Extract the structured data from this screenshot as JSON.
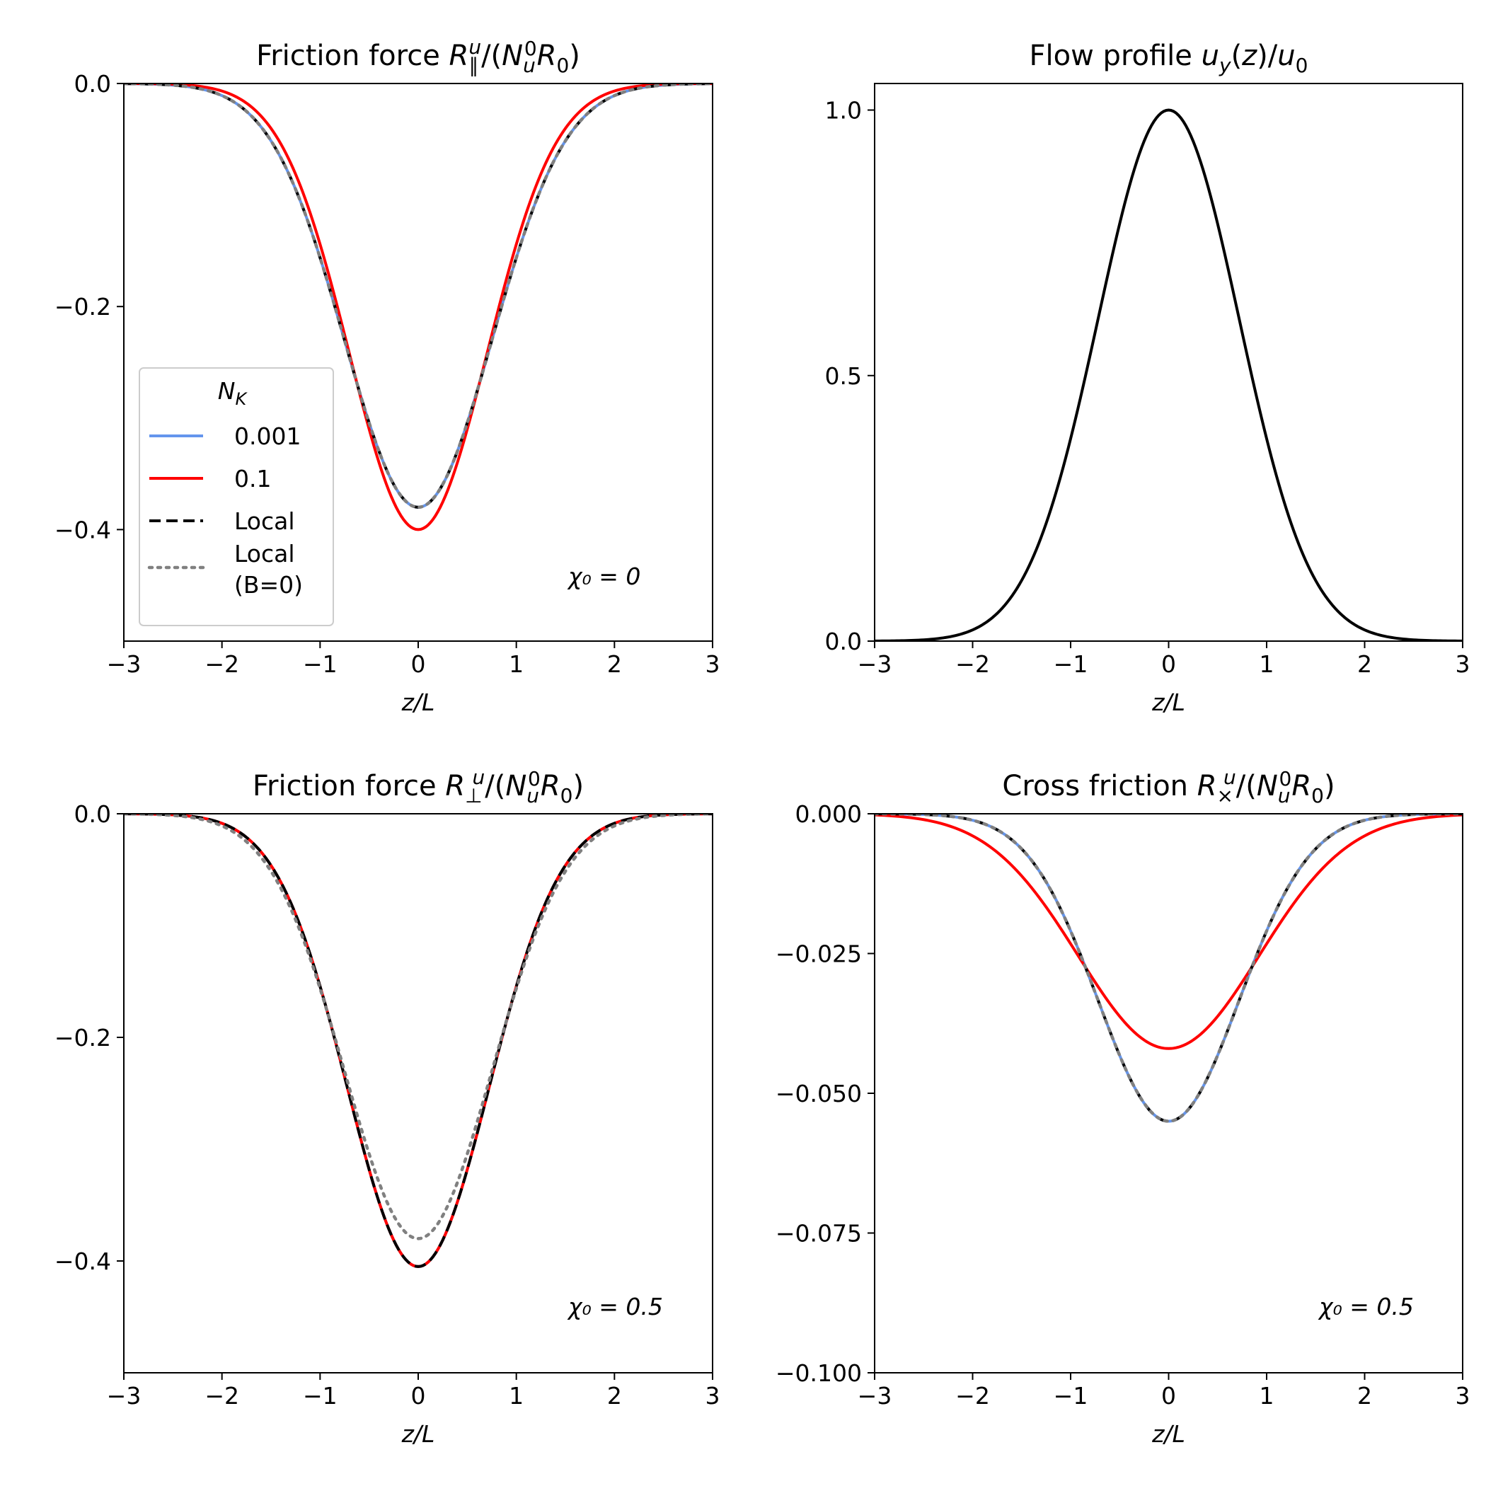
{
  "chart_data": [
    {
      "id": "p1",
      "type": "line",
      "title": "Friction force R∥ᵘ/(N⁰ᵤR₀)",
      "title_parts": [
        "Friction force ",
        "R",
        "∥",
        "u",
        "/(",
        "N",
        "u",
        "0",
        "R",
        "0",
        ")"
      ],
      "xlabel": "z/L",
      "xlim": [
        -3,
        3
      ],
      "ylim": [
        -0.5,
        0
      ],
      "xticks": [
        -3,
        -2,
        -1,
        0,
        1,
        2,
        3
      ],
      "xtick_labels": [
        "−3",
        "−2",
        "−1",
        "0",
        "1",
        "2",
        "3"
      ],
      "yticks": [
        0,
        -0.2,
        -0.4
      ],
      "ytick_labels": [
        "0.0",
        "−0.2",
        "−0.4"
      ],
      "annotation": "χ₀ = 0",
      "series": [
        {
          "name": "0.001",
          "color": "#6495ED",
          "style": "solid",
          "curve": "gaussian",
          "amplitude": -0.38,
          "sigma": 0.75
        },
        {
          "name": "0.1",
          "color": "#FF0000",
          "style": "solid",
          "curve": "gaussian",
          "amplitude": -0.4,
          "sigma": 0.7
        },
        {
          "name": "Local",
          "color": "#000000",
          "style": "dashed",
          "curve": "gaussian",
          "amplitude": -0.38,
          "sigma": 0.75
        },
        {
          "name": "Local (B=0)",
          "color": "#808080",
          "style": "dotted",
          "curve": "gaussian",
          "amplitude": -0.38,
          "sigma": 0.75
        }
      ],
      "legend": {
        "title": "N_K",
        "title_main": "N",
        "title_sub": "K",
        "placement": "center-left",
        "entries": [
          {
            "label": "0.001",
            "color": "#6495ED",
            "style": "solid"
          },
          {
            "label": "0.1",
            "color": "#FF0000",
            "style": "solid"
          },
          {
            "label": "Local",
            "color": "#000000",
            "style": "dashed"
          },
          {
            "label": "Local",
            "label2": "(B=0)",
            "color": "#808080",
            "style": "dotted"
          }
        ]
      }
    },
    {
      "id": "p2",
      "type": "line",
      "title": "Flow profile u_y(z)/u₀",
      "title_parts": [
        "Flow profile ",
        "u",
        "y",
        "(",
        "z",
        ")/",
        "u",
        "0"
      ],
      "xlabel": "z/L",
      "xlim": [
        -3,
        3
      ],
      "ylim": [
        0,
        1.05
      ],
      "xticks": [
        -3,
        -2,
        -1,
        0,
        1,
        2,
        3
      ],
      "xtick_labels": [
        "−3",
        "−2",
        "−1",
        "0",
        "1",
        "2",
        "3"
      ],
      "yticks": [
        0,
        0.5,
        1.0
      ],
      "ytick_labels": [
        "0.0",
        "0.5",
        "1.0"
      ],
      "series": [
        {
          "name": "u_y/u0",
          "color": "#000000",
          "style": "solid",
          "curve": "gaussian",
          "amplitude": 1.0,
          "sigma": 0.72
        }
      ]
    },
    {
      "id": "p3",
      "type": "line",
      "title": "Friction force R⊥ᵘ/(N⁰ᵤR₀)",
      "title_parts": [
        "Friction force ",
        "R",
        "⊥",
        "u",
        "/(",
        "N",
        "u",
        "0",
        "R",
        "0",
        ")"
      ],
      "xlabel": "z/L",
      "xlim": [
        -3,
        3
      ],
      "ylim": [
        -0.5,
        0
      ],
      "xticks": [
        -3,
        -2,
        -1,
        0,
        1,
        2,
        3
      ],
      "xtick_labels": [
        "−3",
        "−2",
        "−1",
        "0",
        "1",
        "2",
        "3"
      ],
      "yticks": [
        0,
        -0.2,
        -0.4
      ],
      "ytick_labels": [
        "0.0",
        "−0.2",
        "−0.4"
      ],
      "annotation": "χ₀ = 0.5",
      "series": [
        {
          "name": "0.001",
          "color": "#6495ED",
          "style": "solid",
          "curve": "gaussian",
          "amplitude": -0.405,
          "sigma": 0.72
        },
        {
          "name": "0.1",
          "color": "#FF0000",
          "style": "solid",
          "curve": "gaussian",
          "amplitude": -0.405,
          "sigma": 0.72
        },
        {
          "name": "Local",
          "color": "#000000",
          "style": "dashed",
          "curve": "gaussian",
          "amplitude": -0.405,
          "sigma": 0.72
        },
        {
          "name": "Local (B=0)",
          "color": "#808080",
          "style": "dotted",
          "curve": "gaussian",
          "amplitude": -0.38,
          "sigma": 0.75
        }
      ]
    },
    {
      "id": "p4",
      "type": "line",
      "title": "Cross friction R×ᵘ/(N⁰ᵤR₀)",
      "title_parts": [
        "Cross friction ",
        "R",
        "×",
        "u",
        "/(",
        "N",
        "u",
        "0",
        "R",
        "0",
        ")"
      ],
      "xlabel": "z/L",
      "xlim": [
        -3,
        3
      ],
      "ylim": [
        -0.1,
        0
      ],
      "xticks": [
        -3,
        -2,
        -1,
        0,
        1,
        2,
        3
      ],
      "xtick_labels": [
        "−3",
        "−2",
        "−1",
        "0",
        "1",
        "2",
        "3"
      ],
      "yticks": [
        0,
        -0.025,
        -0.05,
        -0.075,
        -0.1
      ],
      "ytick_labels": [
        "0.000",
        "−0.025",
        "−0.050",
        "−0.075",
        "−0.100"
      ],
      "annotation": "χ₀ = 0.5",
      "series": [
        {
          "name": "0.001",
          "color": "#6495ED",
          "style": "solid",
          "curve": "gaussian",
          "amplitude": -0.055,
          "sigma": 0.72
        },
        {
          "name": "0.1",
          "color": "#FF0000",
          "style": "solid",
          "curve": "gaussian",
          "amplitude": -0.042,
          "sigma": 0.92
        },
        {
          "name": "Local",
          "color": "#000000",
          "style": "dashed",
          "curve": "gaussian",
          "amplitude": -0.055,
          "sigma": 0.72
        },
        {
          "name": "Local (B=0)",
          "color": "#808080",
          "style": "dotted",
          "curve": "gaussian",
          "amplitude": -0.055,
          "sigma": 0.72
        }
      ]
    }
  ]
}
